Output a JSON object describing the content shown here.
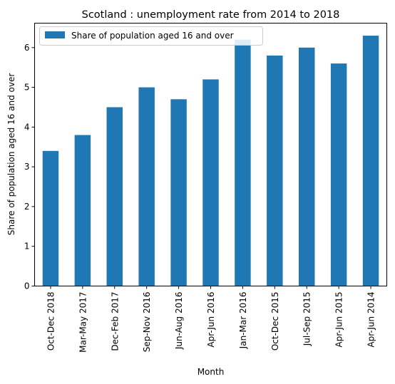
{
  "chart_data": {
    "type": "bar",
    "title": "Scotland : unemployment rate from 2014 to 2018",
    "xlabel": "Month",
    "ylabel": "Share of population aged 16 and over",
    "categories": [
      "Oct-Dec 2018",
      "Mar-May 2017",
      "Dec-Feb 2017",
      "Sep-Nov 2016",
      "Jun-Aug 2016",
      "Apr-Jun 2016",
      "Jan-Mar 2016",
      "Oct-Dec 2015",
      "Jul-Sep 2015",
      "Apr-Jun 2015",
      "Apr-Jun 2014"
    ],
    "series": [
      {
        "name": "Share of population aged 16 and over",
        "values": [
          3.4,
          3.8,
          4.5,
          5.0,
          4.7,
          5.2,
          6.2,
          5.8,
          6.0,
          5.6,
          6.3
        ],
        "color": "#1f77b4"
      }
    ],
    "yticks": [
      "0",
      "1",
      "2",
      "3",
      "4",
      "5",
      "6"
    ],
    "ylim": [
      0,
      6.615
    ],
    "grid": false,
    "legend": "top-left"
  }
}
